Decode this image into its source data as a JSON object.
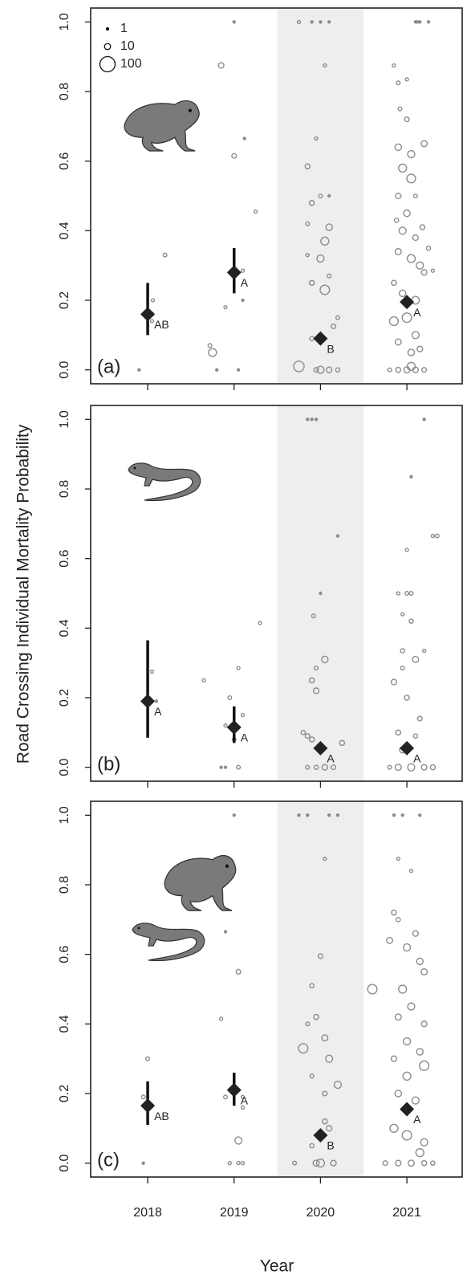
{
  "chart_data": [
    {
      "type": "scatter",
      "panel_label": "(a)",
      "xlim": [
        2017.34,
        2021.64
      ],
      "ylim": [
        -0.04,
        1.04
      ],
      "xticks": [
        2018,
        2019,
        2020,
        2021
      ],
      "show_xtick_labels": false,
      "yticks": [
        {
          "value": 0,
          "label": "0.0"
        },
        0.2,
        0.4,
        0.6,
        0.8,
        {
          "value": 1,
          "label": "1.0"
        }
      ],
      "shade": [
        2019.5,
        2020.5
      ],
      "point_color": "#8c8c8c",
      "legend": {
        "sizes": [
          1,
          10,
          100
        ]
      },
      "estimates": {
        "x": [
          2018,
          2019,
          2020,
          2021
        ],
        "values": [
          0.16,
          0.28,
          0.09,
          0.195
        ],
        "lower": [
          0.1,
          0.22,
          null,
          0.18
        ],
        "upper": [
          0.25,
          0.35,
          null,
          0.21
        ],
        "letters": [
          "AB",
          "A",
          "B",
          "A"
        ]
      },
      "points": [
        [
          2017.9,
          0,
          1
        ],
        [
          2018.05,
          0.14,
          2
        ],
        [
          2018.06,
          0.2,
          2
        ],
        [
          2018.2,
          0.33,
          3
        ],
        [
          2018.05,
          0.16,
          3
        ],
        [
          2019,
          1,
          1
        ],
        [
          2018.85,
          0.875,
          8
        ],
        [
          2019,
          0.615,
          5
        ],
        [
          2019.12,
          0.665,
          1
        ],
        [
          2019.25,
          0.455,
          2
        ],
        [
          2018.9,
          0.18,
          2
        ],
        [
          2019.1,
          0.2,
          1
        ],
        [
          2019.1,
          0.285,
          2
        ],
        [
          2018.75,
          0.05,
          20
        ],
        [
          2018.8,
          0,
          1
        ],
        [
          2019.05,
          0,
          1
        ],
        [
          2018.72,
          0.07,
          3
        ],
        [
          2019.75,
          1,
          2
        ],
        [
          2019.9,
          1,
          1
        ],
        [
          2020,
          1,
          1
        ],
        [
          2020.1,
          1,
          1
        ],
        [
          2020.05,
          0.875,
          2
        ],
        [
          2019.95,
          0.665,
          2
        ],
        [
          2019.85,
          0.585,
          6
        ],
        [
          2019.9,
          0.48,
          6
        ],
        [
          2020,
          0.5,
          3
        ],
        [
          2020.1,
          0.5,
          1
        ],
        [
          2019.85,
          0.42,
          3
        ],
        [
          2020.1,
          0.41,
          12
        ],
        [
          2020.05,
          0.37,
          20
        ],
        [
          2020,
          0.32,
          15
        ],
        [
          2020.1,
          0.27,
          3
        ],
        [
          2019.9,
          0.25,
          6
        ],
        [
          2020.05,
          0.23,
          30
        ],
        [
          2020.2,
          0.15,
          3
        ],
        [
          2020.15,
          0.125,
          5
        ],
        [
          2019.75,
          0.01,
          40
        ],
        [
          2020,
          0,
          15
        ],
        [
          2020.1,
          0,
          8
        ],
        [
          2019.95,
          0,
          5
        ],
        [
          2020.2,
          0,
          4
        ],
        [
          2019.9,
          0.09,
          4
        ],
        [
          2019.85,
          0.33,
          2
        ],
        [
          2021.1,
          1,
          1
        ],
        [
          2021.15,
          1,
          1
        ],
        [
          2021.25,
          1,
          1
        ],
        [
          2021.12,
          1,
          1
        ],
        [
          2020.85,
          0.875,
          2
        ],
        [
          2020.9,
          0.825,
          3
        ],
        [
          2021,
          0.835,
          2
        ],
        [
          2020.92,
          0.75,
          3
        ],
        [
          2021,
          0.72,
          5
        ],
        [
          2020.9,
          0.64,
          12
        ],
        [
          2021.05,
          0.62,
          15
        ],
        [
          2021.2,
          0.65,
          10
        ],
        [
          2020.95,
          0.58,
          20
        ],
        [
          2021.05,
          0.55,
          25
        ],
        [
          2021.1,
          0.5,
          3
        ],
        [
          2020.9,
          0.5,
          8
        ],
        [
          2021,
          0.45,
          12
        ],
        [
          2020.95,
          0.4,
          15
        ],
        [
          2021.1,
          0.38,
          8
        ],
        [
          2020.9,
          0.34,
          10
        ],
        [
          2021.05,
          0.32,
          20
        ],
        [
          2021.15,
          0.3,
          15
        ],
        [
          2021.2,
          0.28,
          8
        ],
        [
          2020.85,
          0.25,
          6
        ],
        [
          2020.95,
          0.22,
          12
        ],
        [
          2021.1,
          0.2,
          18
        ],
        [
          2020.85,
          0.14,
          25
        ],
        [
          2021,
          0.15,
          30
        ],
        [
          2021.1,
          0.1,
          15
        ],
        [
          2020.9,
          0.08,
          10
        ],
        [
          2021.05,
          0.05,
          12
        ],
        [
          2021.15,
          0.06,
          8
        ],
        [
          2020.8,
          0,
          3
        ],
        [
          2020.9,
          0,
          6
        ],
        [
          2021,
          0,
          10
        ],
        [
          2021.1,
          0,
          8
        ],
        [
          2021.2,
          0,
          5
        ],
        [
          2021.05,
          0.01,
          20
        ],
        [
          2021.3,
          0.285,
          2
        ],
        [
          2021.25,
          0.35,
          4
        ],
        [
          2020.88,
          0.43,
          4
        ],
        [
          2021.18,
          0.41,
          6
        ]
      ]
    },
    {
      "type": "scatter",
      "panel_label": "(b)",
      "xlim": [
        2017.34,
        2021.64
      ],
      "ylim": [
        -0.04,
        1.04
      ],
      "xticks": [
        2018,
        2019,
        2020,
        2021
      ],
      "show_xtick_labels": false,
      "yticks": [
        {
          "value": 0,
          "label": "0.0"
        },
        0.2,
        0.4,
        0.6,
        0.8,
        {
          "value": 1,
          "label": "1.0"
        }
      ],
      "shade": [
        2019.5,
        2020.5
      ],
      "point_color": "#8c8c8c",
      "ylabel": "Road Crossing Individual Mortality Probability",
      "estimates": {
        "x": [
          2018,
          2019,
          2020,
          2021
        ],
        "values": [
          0.19,
          0.115,
          0.055,
          0.055
        ],
        "lower": [
          0.085,
          0.07,
          null,
          null
        ],
        "upper": [
          0.365,
          0.175,
          null,
          null
        ],
        "letters": [
          "A",
          "A",
          "A",
          "A"
        ]
      },
      "points": [
        [
          2018.05,
          0.275,
          2
        ],
        [
          2018.1,
          0.19,
          1
        ],
        [
          2018.65,
          0.25,
          2
        ],
        [
          2019.05,
          0.285,
          2
        ],
        [
          2019.3,
          0.415,
          2
        ],
        [
          2018.95,
          0.2,
          3
        ],
        [
          2018.9,
          0.12,
          2
        ],
        [
          2019,
          0.08,
          3
        ],
        [
          2018.85,
          0,
          1
        ],
        [
          2018.9,
          0,
          1
        ],
        [
          2019.05,
          0,
          3
        ],
        [
          2019.1,
          0.15,
          2
        ],
        [
          2019.85,
          1,
          1
        ],
        [
          2019.9,
          1,
          1
        ],
        [
          2019.95,
          1,
          1
        ],
        [
          2020.2,
          0.665,
          1
        ],
        [
          2020,
          0.5,
          1
        ],
        [
          2019.92,
          0.435,
          3
        ],
        [
          2019.95,
          0.285,
          3
        ],
        [
          2020.05,
          0.31,
          12
        ],
        [
          2019.9,
          0.25,
          6
        ],
        [
          2019.95,
          0.22,
          8
        ],
        [
          2019.8,
          0.1,
          4
        ],
        [
          2019.85,
          0.09,
          5
        ],
        [
          2019.9,
          0.08,
          6
        ],
        [
          2020.25,
          0.07,
          6
        ],
        [
          2019.95,
          0,
          4
        ],
        [
          2020.05,
          0,
          8
        ],
        [
          2020.15,
          0,
          5
        ],
        [
          2019.85,
          0,
          3
        ],
        [
          2021.2,
          1,
          1
        ],
        [
          2021.05,
          0.835,
          1
        ],
        [
          2021.35,
          0.665,
          3
        ],
        [
          2021.3,
          0.665,
          2
        ],
        [
          2021,
          0.625,
          2
        ],
        [
          2020.9,
          0.5,
          2
        ],
        [
          2021,
          0.5,
          3
        ],
        [
          2021.05,
          0.5,
          3
        ],
        [
          2020.95,
          0.44,
          2
        ],
        [
          2021.05,
          0.42,
          4
        ],
        [
          2020.95,
          0.335,
          4
        ],
        [
          2021.2,
          0.335,
          2
        ],
        [
          2021.1,
          0.31,
          10
        ],
        [
          2020.85,
          0.245,
          8
        ],
        [
          2020.95,
          0.285,
          3
        ],
        [
          2021,
          0.2,
          6
        ],
        [
          2021.15,
          0.14,
          5
        ],
        [
          2020.9,
          0.1,
          6
        ],
        [
          2021.1,
          0.09,
          4
        ],
        [
          2020.95,
          0.05,
          10
        ],
        [
          2021.05,
          0,
          15
        ],
        [
          2020.9,
          0,
          10
        ],
        [
          2021.2,
          0,
          8
        ],
        [
          2021.3,
          0,
          6
        ],
        [
          2020.8,
          0,
          3
        ]
      ]
    },
    {
      "type": "scatter",
      "panel_label": "(c)",
      "xlim": [
        2017.34,
        2021.64
      ],
      "ylim": [
        -0.04,
        1.04
      ],
      "xticks": [
        2018,
        2019,
        2020,
        2021
      ],
      "show_xtick_labels": true,
      "yticks": [
        {
          "value": 0,
          "label": "0.0"
        },
        0.2,
        0.4,
        0.6,
        0.8,
        {
          "value": 1,
          "label": "1.0"
        }
      ],
      "shade": [
        2019.5,
        2020.5
      ],
      "point_color": "#8c8c8c",
      "xlabel": "Year",
      "estimates": {
        "x": [
          2018,
          2019,
          2020,
          2021
        ],
        "values": [
          0.165,
          0.21,
          0.08,
          0.155
        ],
        "lower": [
          0.11,
          0.165,
          null,
          null
        ],
        "upper": [
          0.235,
          0.26,
          null,
          null
        ],
        "letters": [
          "AB",
          "A",
          "B",
          "A"
        ]
      },
      "points": [
        [
          2018,
          0.3,
          3
        ],
        [
          2017.95,
          0.19,
          3
        ],
        [
          2018.05,
          0.165,
          2
        ],
        [
          2017.95,
          0,
          1
        ],
        [
          2019,
          1,
          1
        ],
        [
          2018.9,
          0.665,
          1
        ],
        [
          2019.05,
          0.55,
          5
        ],
        [
          2018.85,
          0.415,
          2
        ],
        [
          2018.9,
          0.19,
          3
        ],
        [
          2019.1,
          0.16,
          2
        ],
        [
          2019.1,
          0.19,
          2
        ],
        [
          2019.05,
          0.065,
          15
        ],
        [
          2018.95,
          0,
          2
        ],
        [
          2019.05,
          0,
          2
        ],
        [
          2019.1,
          0,
          2
        ],
        [
          2019.75,
          1,
          1
        ],
        [
          2019.85,
          1,
          1
        ],
        [
          2020.1,
          1,
          1
        ],
        [
          2020.2,
          1,
          1
        ],
        [
          2020.05,
          0.875,
          2
        ],
        [
          2020,
          0.595,
          5
        ],
        [
          2019.9,
          0.51,
          4
        ],
        [
          2019.95,
          0.42,
          6
        ],
        [
          2019.85,
          0.4,
          3
        ],
        [
          2019.8,
          0.33,
          30
        ],
        [
          2020.05,
          0.36,
          10
        ],
        [
          2020.1,
          0.3,
          15
        ],
        [
          2020.2,
          0.225,
          15
        ],
        [
          2020.05,
          0.2,
          5
        ],
        [
          2019.9,
          0.25,
          3
        ],
        [
          2020.05,
          0.12,
          6
        ],
        [
          2020.1,
          0.1,
          8
        ],
        [
          2019.9,
          0.05,
          4
        ],
        [
          2020,
          0,
          20
        ],
        [
          2019.95,
          0,
          10
        ],
        [
          2020.15,
          0,
          8
        ],
        [
          2019.7,
          0,
          3
        ],
        [
          2020.85,
          1,
          1
        ],
        [
          2020.95,
          1,
          1
        ],
        [
          2021.15,
          1,
          1
        ],
        [
          2020.9,
          0.875,
          2
        ],
        [
          2021.05,
          0.84,
          2
        ],
        [
          2020.85,
          0.72,
          6
        ],
        [
          2020.9,
          0.7,
          4
        ],
        [
          2021.1,
          0.66,
          8
        ],
        [
          2020.8,
          0.64,
          10
        ],
        [
          2021,
          0.62,
          15
        ],
        [
          2021.15,
          0.58,
          12
        ],
        [
          2021.2,
          0.55,
          10
        ],
        [
          2020.6,
          0.5,
          30
        ],
        [
          2020.95,
          0.5,
          20
        ],
        [
          2021.05,
          0.45,
          15
        ],
        [
          2020.9,
          0.42,
          10
        ],
        [
          2021.2,
          0.4,
          8
        ],
        [
          2021,
          0.35,
          15
        ],
        [
          2021.15,
          0.32,
          12
        ],
        [
          2020.85,
          0.3,
          8
        ],
        [
          2021.2,
          0.28,
          30
        ],
        [
          2021,
          0.25,
          20
        ],
        [
          2020.9,
          0.2,
          12
        ],
        [
          2021.1,
          0.18,
          15
        ],
        [
          2020.85,
          0.1,
          20
        ],
        [
          2021,
          0.08,
          30
        ],
        [
          2021.2,
          0.06,
          15
        ],
        [
          2021.15,
          0.03,
          20
        ],
        [
          2020.9,
          0,
          8
        ],
        [
          2021.05,
          0,
          10
        ],
        [
          2021.2,
          0,
          6
        ],
        [
          2021.3,
          0,
          4
        ],
        [
          2020.75,
          0,
          5
        ]
      ]
    }
  ]
}
